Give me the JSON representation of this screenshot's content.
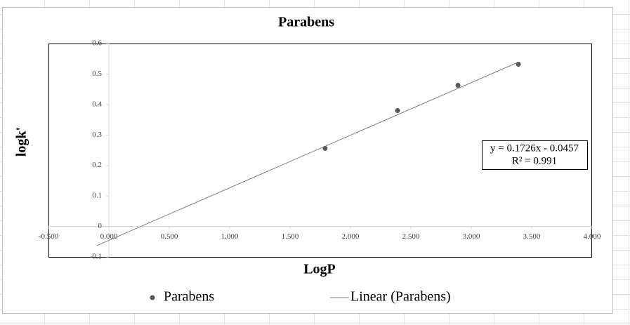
{
  "chart_data": {
    "type": "scatter",
    "title": "Parabens",
    "x_label": "LogP",
    "y_label": "logk'",
    "series": [
      {
        "name": "Parabens",
        "style": "marker",
        "color": "#595959",
        "x": [
          1.79,
          2.39,
          2.89,
          3.39
        ],
        "values": [
          0.256,
          0.38,
          0.463,
          0.532
        ]
      },
      {
        "name": "Linear (Parabens)",
        "style": "line",
        "color": "#7f7f7f",
        "x": [
          -0.1,
          3.39
        ],
        "values": [
          -0.063,
          0.539
        ]
      }
    ],
    "equation": "y = 0.1726x - 0.0457",
    "r_squared": "R² = 0.991",
    "xlim": [
      -0.5,
      4.0
    ],
    "ylim": [
      -0.1,
      0.6
    ],
    "xticks": [
      {
        "value": -0.5,
        "label": "-0.500"
      },
      {
        "value": 0,
        "label": "0.000"
      },
      {
        "value": 0.5,
        "label": "0.500"
      },
      {
        "value": 1,
        "label": "1.000"
      },
      {
        "value": 1.5,
        "label": "1.500"
      },
      {
        "value": 2,
        "label": "2.000"
      },
      {
        "value": 2.5,
        "label": "2.500"
      },
      {
        "value": 3,
        "label": "3.000"
      },
      {
        "value": 3.5,
        "label": "3.500"
      },
      {
        "value": 4,
        "label": "4.000"
      }
    ],
    "yticks": [
      -0.1,
      0,
      0.1,
      0.2,
      0.3,
      0.4,
      0.5,
      0.6
    ],
    "grid": false,
    "legend": "bottom"
  }
}
